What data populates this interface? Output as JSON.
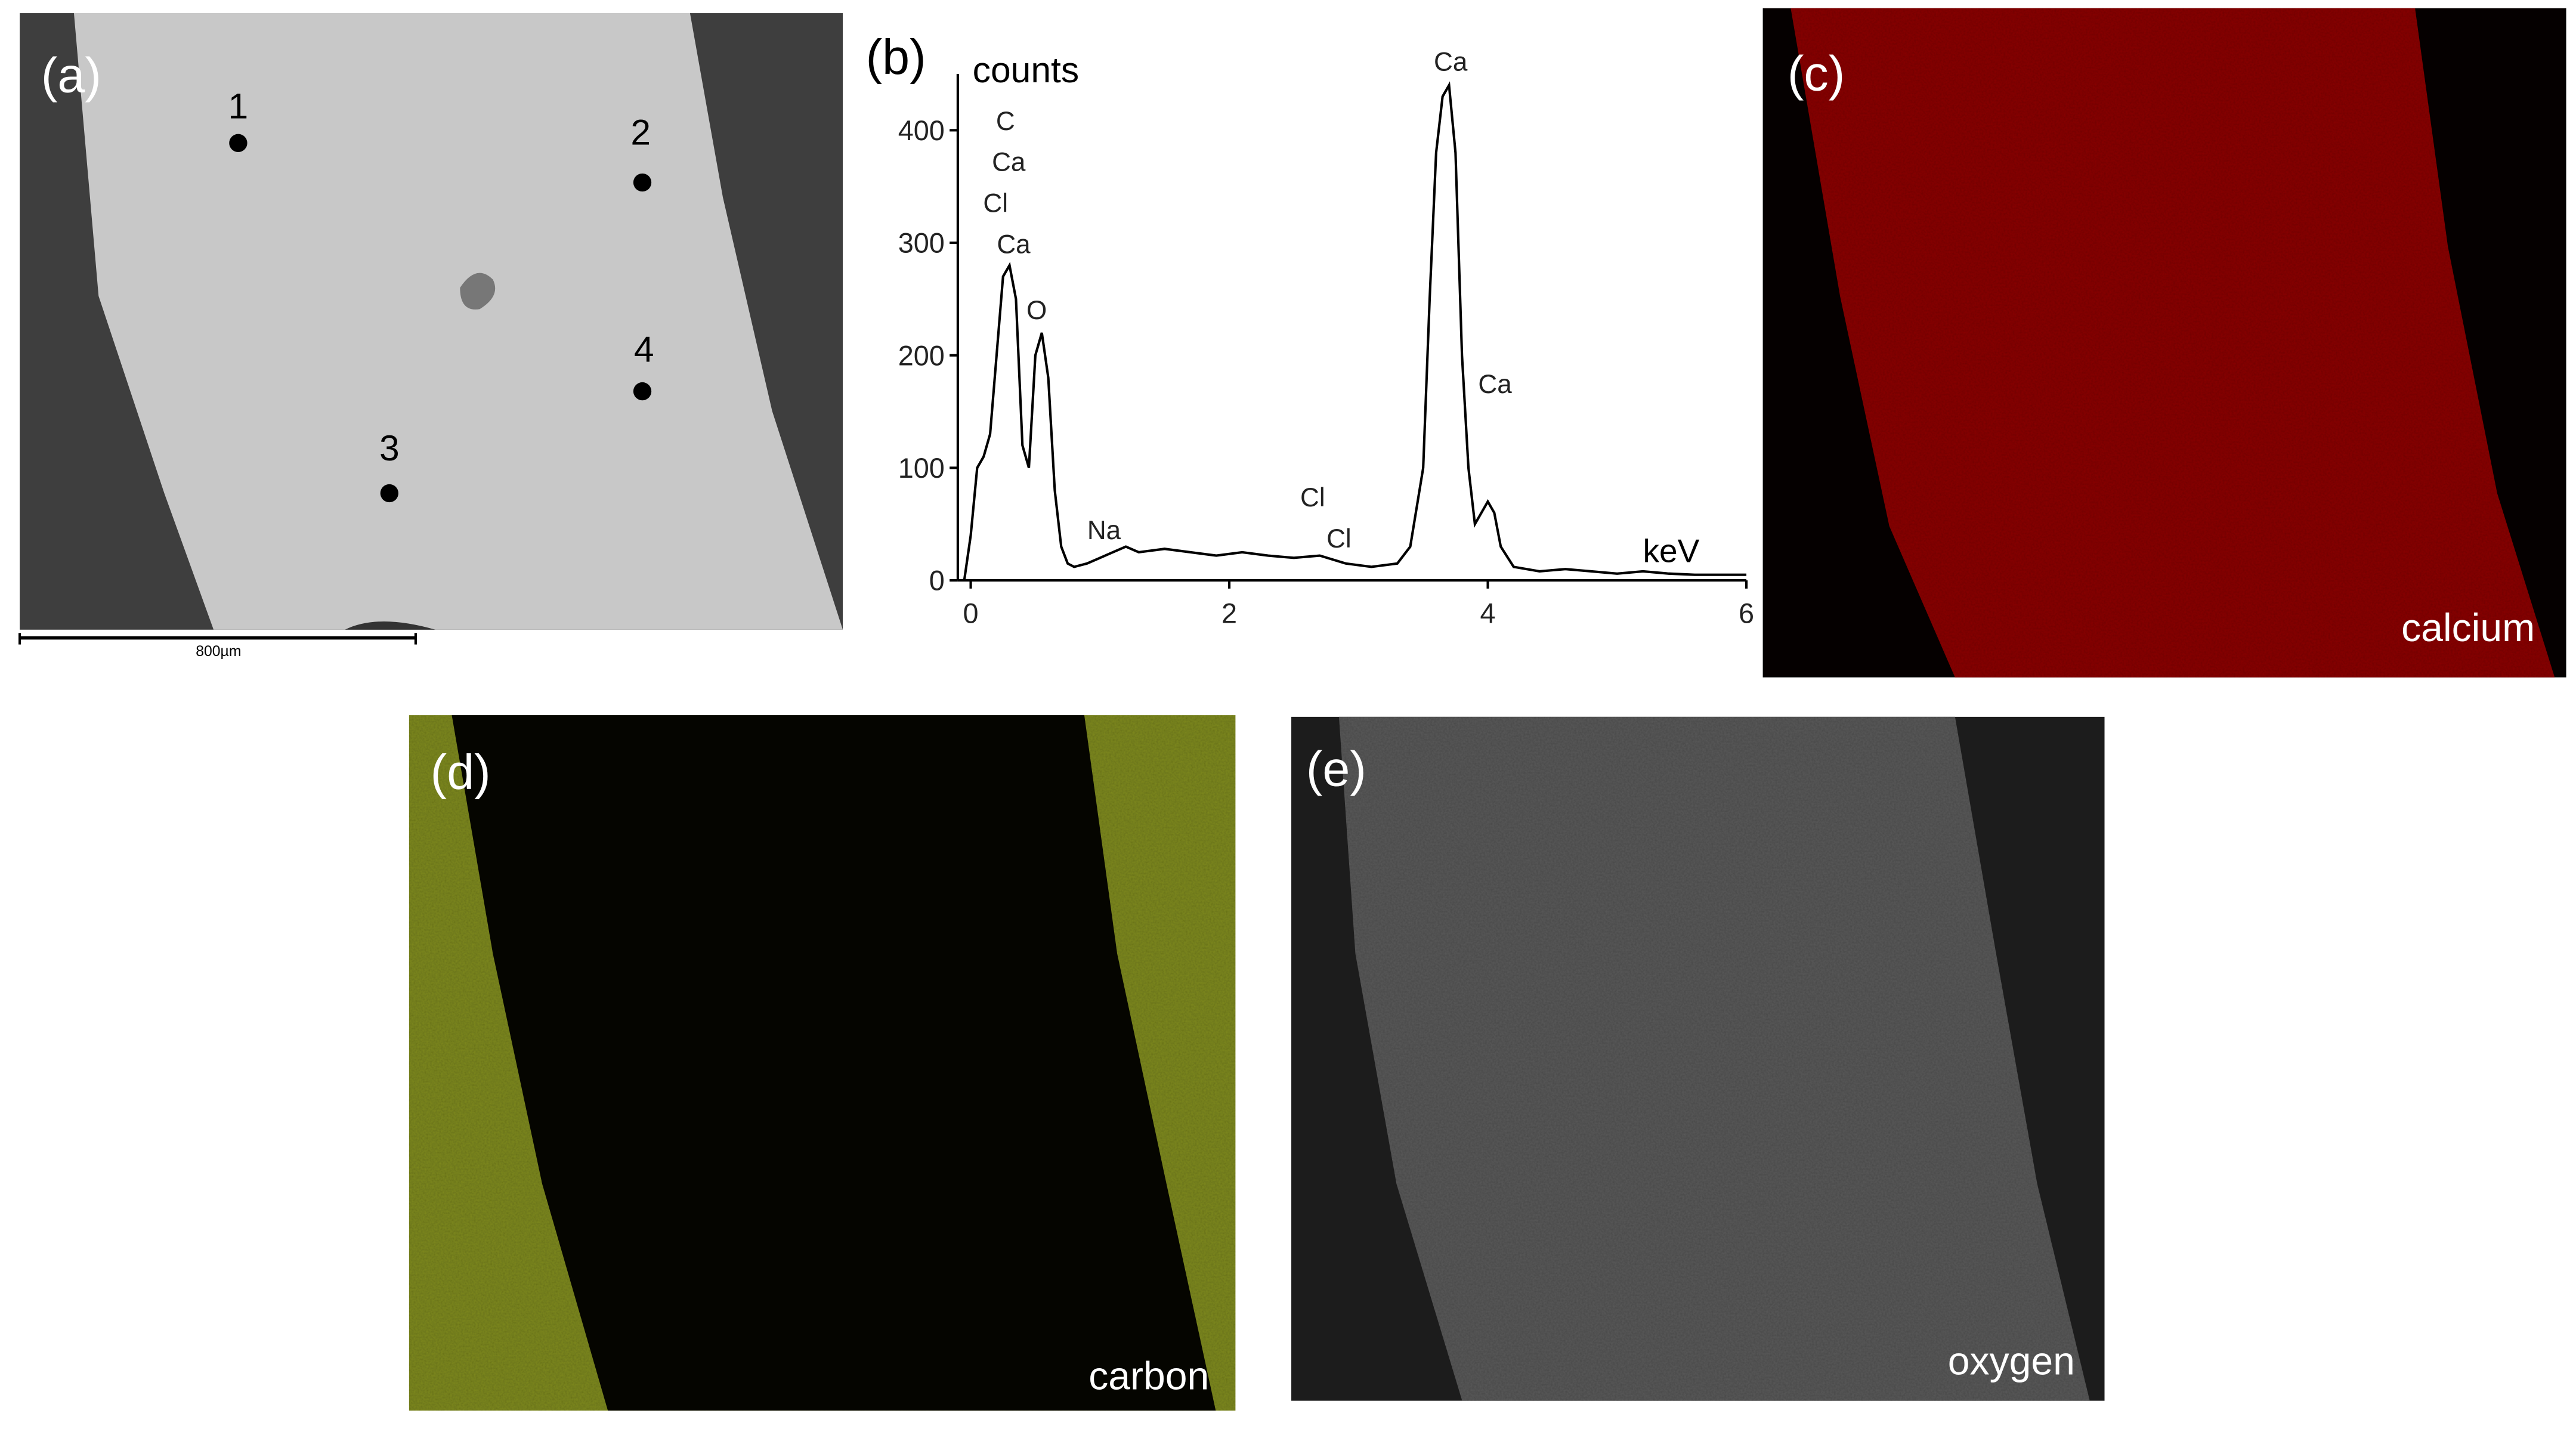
{
  "panels": {
    "a": {
      "label": "(a)",
      "points": [
        "1",
        "2",
        "3",
        "4"
      ],
      "scale_bar": "800µm"
    },
    "b": {
      "label": "(b)"
    },
    "c": {
      "label": "(c)",
      "caption": "calcium"
    },
    "d": {
      "label": "(d)",
      "caption": "carbon"
    },
    "e": {
      "label": "(e)",
      "caption": "oxygen"
    }
  },
  "chart_data": {
    "type": "line",
    "y_label": "counts",
    "x_label": "keV",
    "color": "#000000",
    "x": [
      -0.05,
      0,
      0.05,
      0.1,
      0.15,
      0.2,
      0.25,
      0.3,
      0.35,
      0.4,
      0.45,
      0.5,
      0.55,
      0.6,
      0.65,
      0.7,
      0.75,
      0.8,
      0.9,
      1.0,
      1.1,
      1.2,
      1.3,
      1.5,
      1.7,
      1.9,
      2.1,
      2.3,
      2.5,
      2.7,
      2.9,
      3.1,
      3.3,
      3.4,
      3.5,
      3.55,
      3.6,
      3.65,
      3.7,
      3.75,
      3.8,
      3.85,
      3.9,
      3.95,
      4.0,
      4.05,
      4.1,
      4.2,
      4.4,
      4.6,
      4.8,
      5.0,
      5.2,
      5.4,
      5.6,
      5.8,
      6.0
    ],
    "values": [
      0,
      40,
      100,
      110,
      130,
      200,
      270,
      280,
      250,
      120,
      100,
      200,
      220,
      180,
      80,
      30,
      15,
      12,
      15,
      20,
      25,
      30,
      25,
      28,
      25,
      22,
      25,
      22,
      20,
      22,
      15,
      12,
      15,
      30,
      100,
      250,
      380,
      430,
      440,
      380,
      200,
      100,
      50,
      60,
      70,
      60,
      30,
      12,
      8,
      10,
      8,
      6,
      8,
      6,
      5,
      5,
      5
    ],
    "xlim": [
      -0.1,
      6
    ],
    "ylim": [
      0,
      450
    ],
    "xticks": [
      0,
      2,
      4,
      6
    ],
    "yticks": [
      0,
      100,
      200,
      300,
      400
    ],
    "annotations": [
      "C",
      "Ca",
      "Cl",
      "Ca",
      "O",
      "Na",
      "Cl",
      "Cl",
      "Ca",
      "Ca"
    ]
  }
}
